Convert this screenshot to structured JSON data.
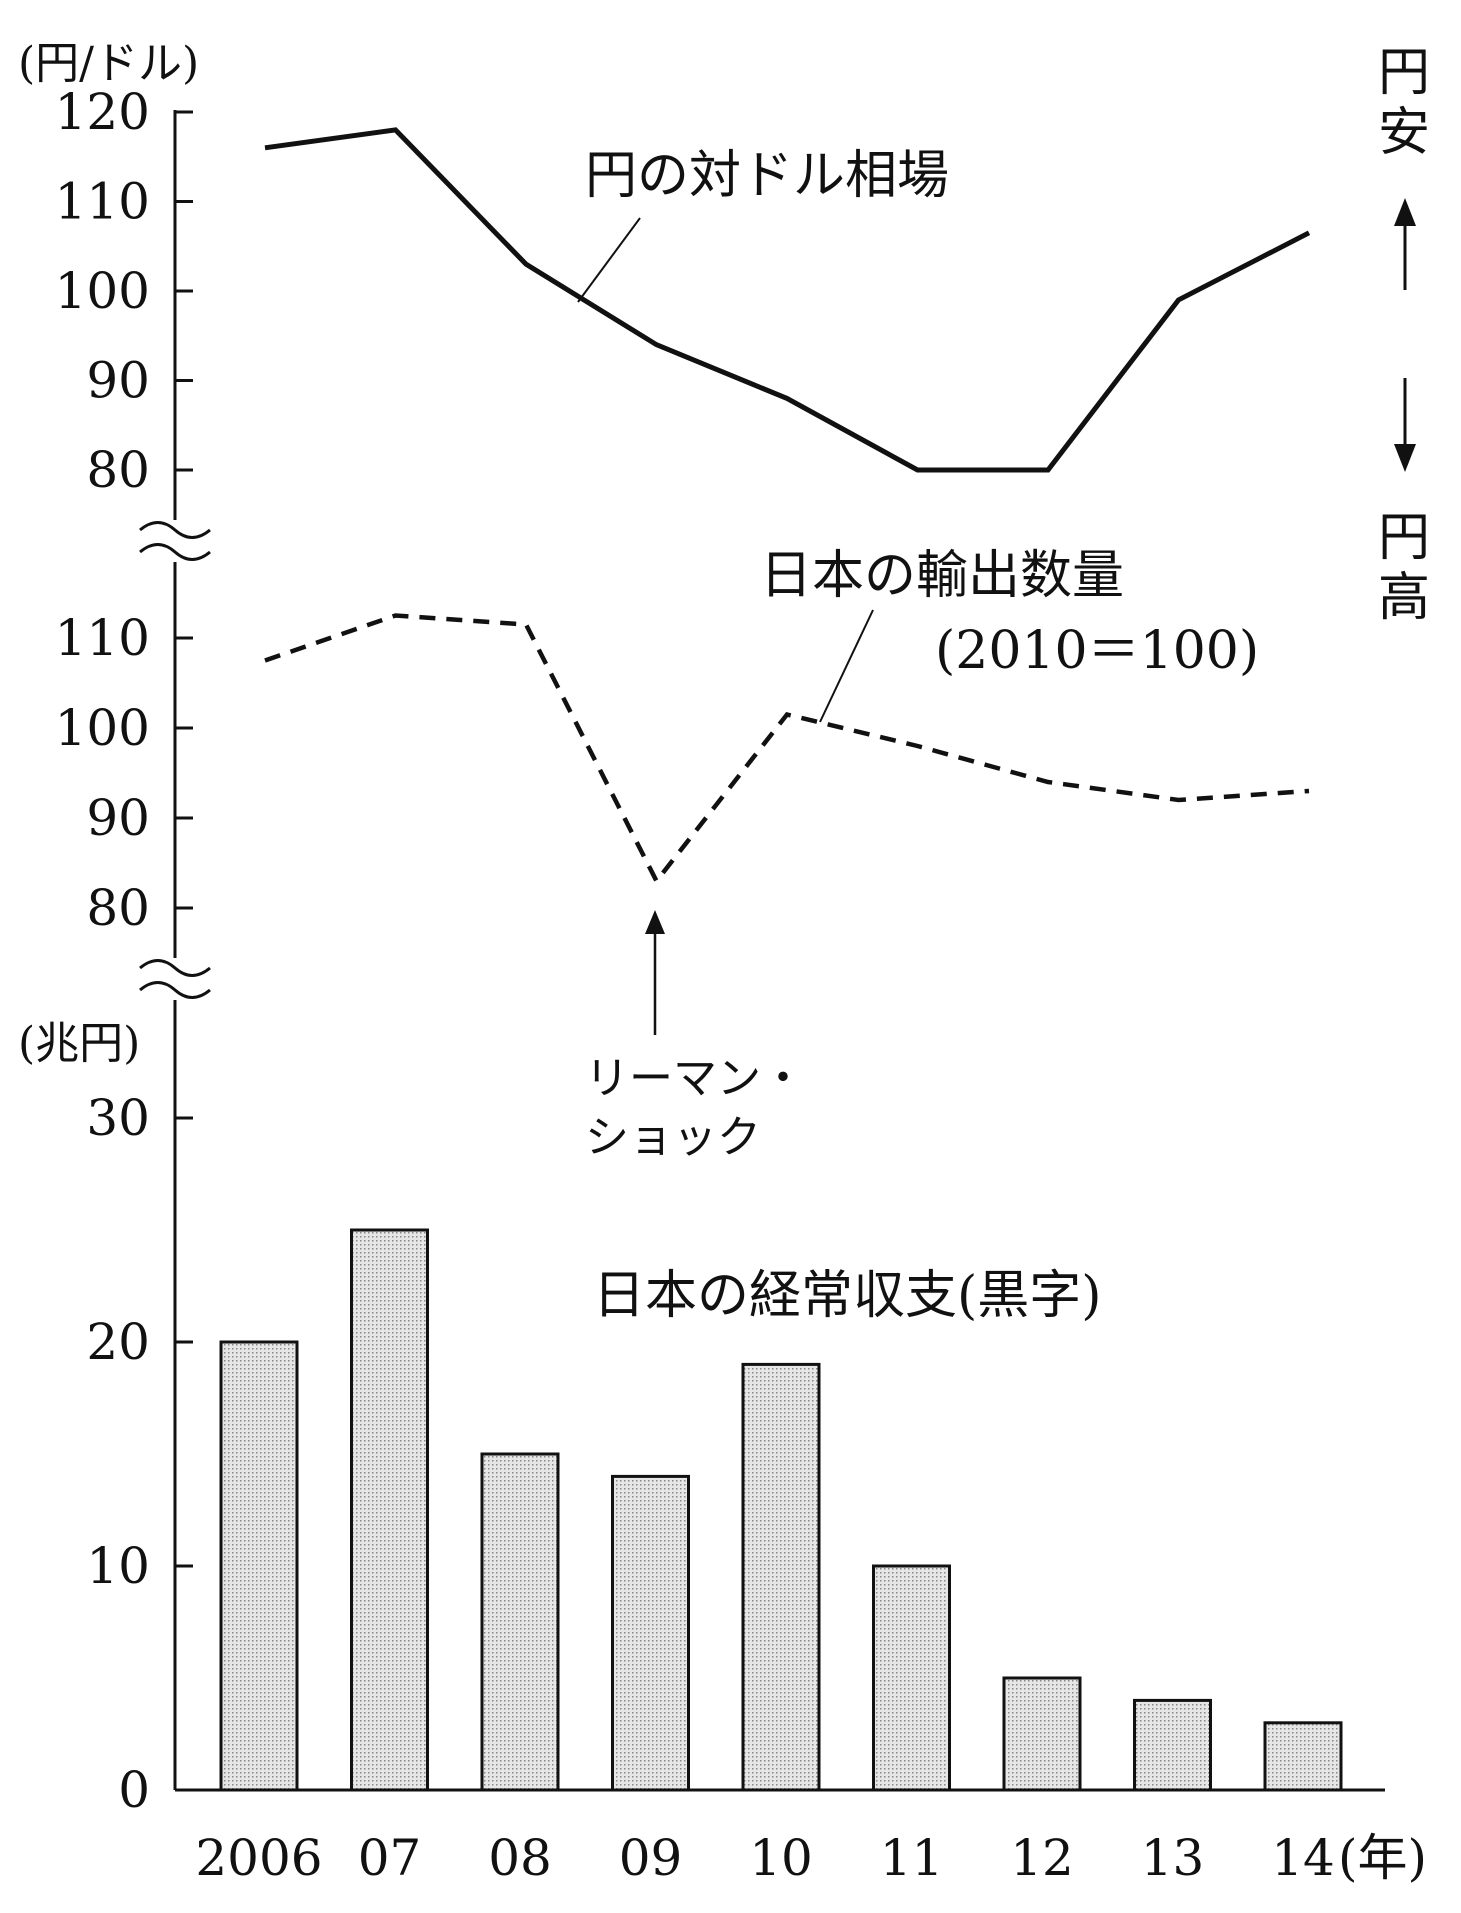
{
  "chart_data": {
    "type": "composite",
    "x_categories": [
      "2006",
      "07",
      "08",
      "09",
      "10",
      "11",
      "12",
      "13",
      "14"
    ],
    "x_unit": "(年)",
    "panels": [
      {
        "type": "line",
        "style": "solid",
        "series_name": "円の対ドル相場",
        "unit": "(円/ドル)",
        "ylim": [
          80,
          120
        ],
        "yticks": [
          "120",
          "110",
          "100",
          "90",
          "80"
        ],
        "values": [
          116,
          118,
          103,
          94,
          88,
          80,
          80,
          99,
          106.5
        ],
        "annotation_top": "円安",
        "annotation_bottom": "円高"
      },
      {
        "type": "line",
        "style": "dashed",
        "series_name": "日本の輸出数量",
        "series_note": "(2010＝100)",
        "ylim": [
          80,
          110
        ],
        "yticks": [
          "110",
          "100",
          "90",
          "80"
        ],
        "values": [
          107.5,
          112.5,
          111.5,
          83,
          101.5,
          98,
          94,
          92,
          93
        ],
        "callout": [
          "リーマン・",
          "ショック"
        ]
      },
      {
        "type": "bar",
        "series_name": "日本の経常収支(黒字)",
        "unit": "(兆円)",
        "ylim": [
          0,
          30
        ],
        "yticks": [
          "30",
          "20",
          "10",
          "0"
        ],
        "values": [
          20,
          25,
          15,
          14,
          19,
          10,
          5,
          4,
          3
        ]
      }
    ]
  }
}
